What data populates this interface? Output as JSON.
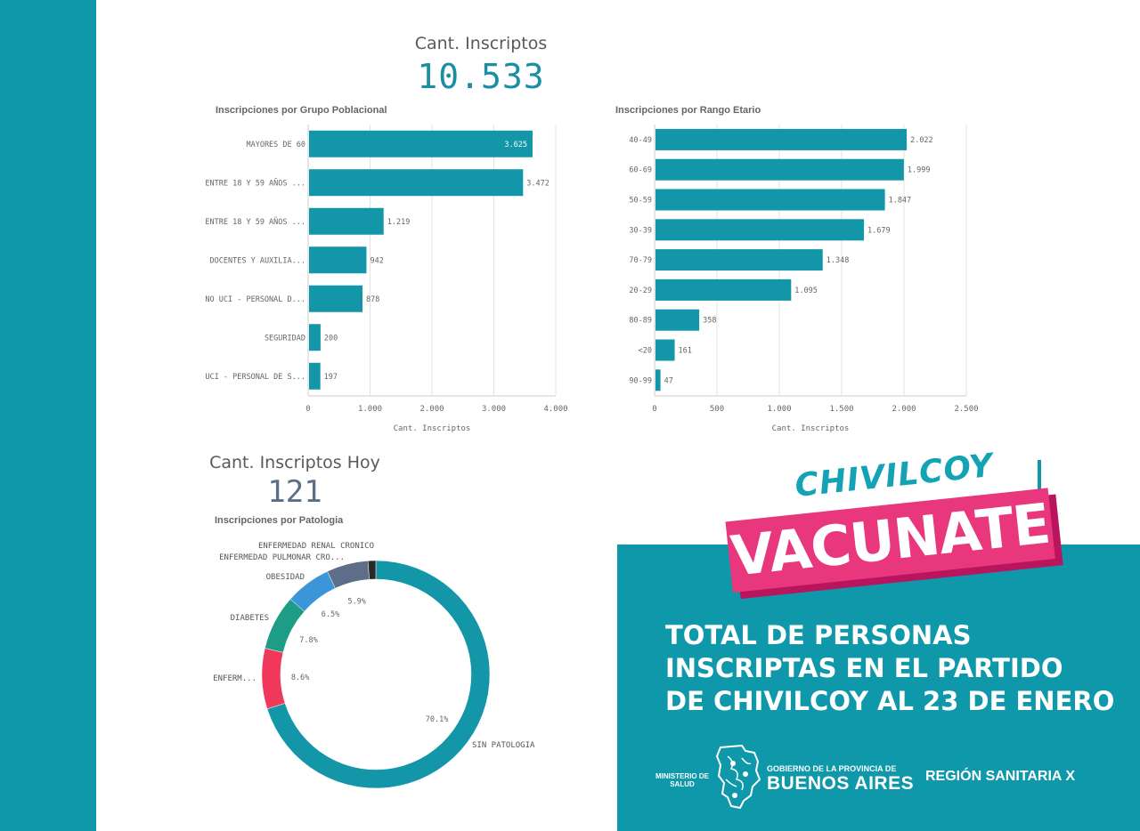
{
  "colors": {
    "teal": "#0f97aa",
    "bar": "#1396a8",
    "kpi_total": "#1a8fa3",
    "kpi_today": "#5a6f86",
    "pink": "#e8377c"
  },
  "kpis": {
    "total": {
      "label": "Cant. Inscriptos",
      "value": "10.533"
    },
    "today": {
      "label": "Cant. Inscriptos Hoy",
      "value": "121"
    }
  },
  "chart_data": [
    {
      "type": "bar",
      "orientation": "horizontal",
      "title": "Inscripciones por Grupo Poblacional",
      "xlabel": "Cant. Inscriptos",
      "categories": [
        "MAYORES DE 60",
        "ENTRE 18 Y 59 AÑOS ...",
        "ENTRE 18 Y 59 AÑOS ...",
        "DOCENTES Y AUXILIA...",
        "NO UCI - PERSONAL D...",
        "SEGURIDAD",
        "UCI - PERSONAL DE S..."
      ],
      "values": [
        3625,
        3472,
        1219,
        942,
        878,
        200,
        197
      ],
      "value_labels": [
        "3.625",
        "3.472",
        "1.219",
        "942",
        "878",
        "200",
        "197"
      ],
      "xlim": [
        0,
        4000
      ],
      "ticks": [
        0,
        1000,
        2000,
        3000,
        4000
      ],
      "tick_labels": [
        "0",
        "1.000",
        "2.000",
        "3.000",
        "4.000"
      ],
      "grid": true
    },
    {
      "type": "bar",
      "orientation": "horizontal",
      "title": "Inscripciones por Rango Etario",
      "xlabel": "Cant. Inscriptos",
      "categories": [
        "40-49",
        "60-69",
        "50-59",
        "30-39",
        "70-79",
        "20-29",
        "80-89",
        "<20",
        "90-99"
      ],
      "values": [
        2022,
        1999,
        1847,
        1679,
        1348,
        1095,
        358,
        161,
        47
      ],
      "value_labels": [
        "2.022",
        "1.999",
        "1.847",
        "1.679",
        "1.348",
        "1.095",
        "358",
        "161",
        "47"
      ],
      "xlim": [
        0,
        2500
      ],
      "ticks": [
        0,
        500,
        1000,
        1500,
        2000,
        2500
      ],
      "tick_labels": [
        "0",
        "500",
        "1.000",
        "1.500",
        "2.000",
        "2.500"
      ],
      "grid": true
    },
    {
      "type": "pie",
      "donut": true,
      "title": "Inscripciones por Patologia",
      "slices": [
        {
          "label": "SIN PATOLOGIA",
          "value": 70.1,
          "pct_label": "70.1%",
          "color": "#1396a8"
        },
        {
          "label": "ENFERM...",
          "value": 8.6,
          "pct_label": "8.6%",
          "color": "#f0395a"
        },
        {
          "label": "DIABETES",
          "value": 7.8,
          "pct_label": "7.8%",
          "color": "#1e9d86"
        },
        {
          "label": "OBESIDAD",
          "value": 6.5,
          "pct_label": "6.5%",
          "color": "#3b95d9"
        },
        {
          "label": "ENFERMEDAD PULMONAR CRO...",
          "value": 5.9,
          "pct_label": "5.9%",
          "color": "#5e6e88"
        },
        {
          "label": "ENFERMEDAD RENAL CRONICO",
          "value": 1.1,
          "pct_label": "",
          "color": "#2a2a2a"
        }
      ]
    }
  ],
  "promo": {
    "city": "CHIVILCOY",
    "slogan": "VACUNATE",
    "lines": [
      "TOTAL DE PERSONAS",
      "INSCRIPTAS EN EL PARTIDO",
      "DE CHIVILCOY AL 23 DE ENERO"
    ],
    "ministerio": "MINISTERIO DE SALUD",
    "gob_small": "GOBIERNO DE LA PROVINCIA DE",
    "gob_big": "BUENOS AIRES",
    "region": "REGIÓN SANITARIA X"
  }
}
